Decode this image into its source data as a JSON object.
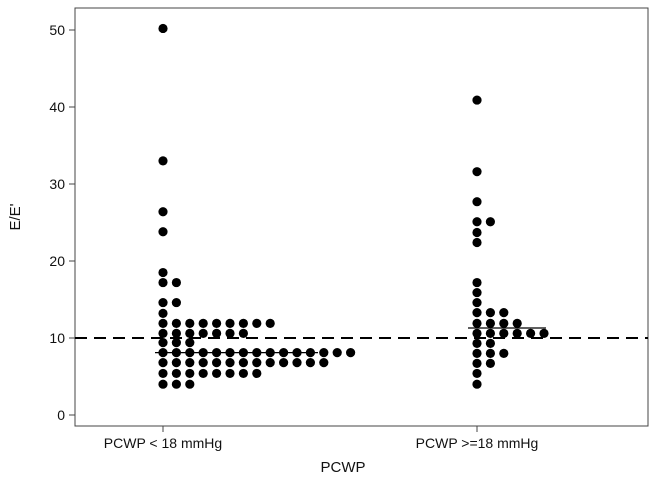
{
  "chart_data": {
    "type": "scatter",
    "subtype": "dot-plot",
    "xlabel": "PCWP",
    "ylabel": "E/E'",
    "ylim": [
      -2,
      52
    ],
    "yticks": [
      0,
      10,
      20,
      30,
      40,
      50
    ],
    "categories": [
      "PCWP < 18 mmHg",
      "PCWP >=18 mmHg"
    ],
    "reference_line": {
      "y": 10,
      "style": "dashed"
    },
    "groups": [
      {
        "category": "PCWP < 18 mmHg",
        "median": 8.1,
        "rows": [
          {
            "y": 50.2,
            "count": 1
          },
          {
            "y": 33.0,
            "count": 1
          },
          {
            "y": 26.4,
            "count": 1
          },
          {
            "y": 23.8,
            "count": 1
          },
          {
            "y": 18.5,
            "count": 1
          },
          {
            "y": 17.2,
            "count": 2
          },
          {
            "y": 14.6,
            "count": 2
          },
          {
            "y": 13.2,
            "count": 1
          },
          {
            "y": 11.9,
            "count": 9
          },
          {
            "y": 10.6,
            "count": 7
          },
          {
            "y": 9.4,
            "count": 3
          },
          {
            "y": 8.1,
            "count": 15
          },
          {
            "y": 6.8,
            "count": 13
          },
          {
            "y": 5.4,
            "count": 8
          },
          {
            "y": 4.0,
            "count": 3
          }
        ]
      },
      {
        "category": "PCWP >=18 mmHg",
        "median": 11.3,
        "rows": [
          {
            "y": 40.9,
            "count": 1
          },
          {
            "y": 31.6,
            "count": 1
          },
          {
            "y": 27.7,
            "count": 1
          },
          {
            "y": 25.1,
            "count": 2
          },
          {
            "y": 23.7,
            "count": 1
          },
          {
            "y": 22.4,
            "count": 1
          },
          {
            "y": 17.2,
            "count": 1
          },
          {
            "y": 15.9,
            "count": 1
          },
          {
            "y": 14.6,
            "count": 1
          },
          {
            "y": 13.3,
            "count": 3
          },
          {
            "y": 11.9,
            "count": 4
          },
          {
            "y": 10.6,
            "count": 6
          },
          {
            "y": 9.3,
            "count": 2
          },
          {
            "y": 8.0,
            "count": 3
          },
          {
            "y": 6.7,
            "count": 2
          },
          {
            "y": 5.4,
            "count": 1
          },
          {
            "y": 4.0,
            "count": 1
          }
        ]
      }
    ],
    "colors": {
      "dot": "#000000",
      "median_line": "#000000",
      "reference_line": "#000000",
      "frame": "#444444"
    },
    "grid": false
  }
}
